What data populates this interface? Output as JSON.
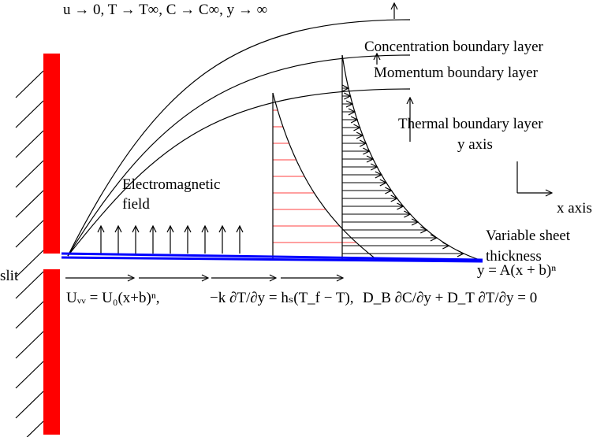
{
  "top_condition": "u → 0, T → T∞, C → C∞, y → ∞",
  "labels": {
    "concentration": "Concentration boundary layer",
    "momentum": "Momentum boundary layer",
    "thermal": "Thermal boundary layer",
    "y_axis": "y axis",
    "x_axis": "x axis",
    "field_line1": "Electromagnetic",
    "field_line2": "field",
    "sheet_line1": "Variable sheet",
    "sheet_line2": "thickness",
    "slit": "slit",
    "sheet_equation": "y = A(x + b)ⁿ"
  },
  "boundary_conditions": [
    "Uᵥᵥ = U₀(x+b)ⁿ,",
    "−k ∂T/∂y = hₛ(T_f − T),",
    "D_B ∂C/∂y + D_T ∂T/∂y = 0"
  ]
}
